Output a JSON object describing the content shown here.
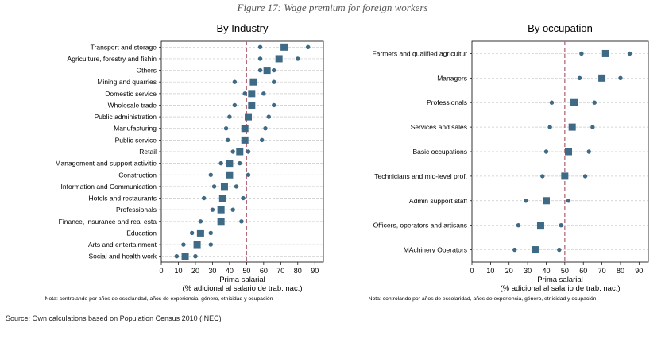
{
  "figure": {
    "caption": "Figure 17: Wage premium for foreign workers",
    "source": "Source: Own calculations based on Population Census 2010 (INEC)"
  },
  "colors": {
    "marker": "#3e6a85",
    "refline": "#b46a78",
    "grid": "#c8c8c8"
  },
  "chart_data": [
    {
      "type": "scatter",
      "title": "By Industry",
      "xlabel": "Prima salarial",
      "xlabel2": "(% adicional al salario de trab. nac.)",
      "note": "Nota: controlando por años de escolaridad, años de experiencia, género, etnicidad y ocupación",
      "xlim": [
        0,
        95
      ],
      "xticks": [
        0,
        10,
        20,
        30,
        40,
        50,
        60,
        70,
        80,
        90
      ],
      "refline": 50,
      "grid": true,
      "categories": [
        "Transport and storage",
        "Agriculture, forestry and fishin",
        "Others",
        "Mining and quarries",
        "Domestic service",
        "Wholesale trade",
        "Public administration",
        "Manufacturing",
        "Public service",
        "Retail",
        "Management and support activitie",
        "Construction",
        "Information and Communication",
        "Hotels and restaurants",
        "Professionals",
        "Finance, insurance and real esta",
        "Education",
        "Arts and entertainment",
        "Social and health work"
      ],
      "series": [
        {
          "marker": "square",
          "values": [
            72,
            69,
            62,
            54,
            53,
            53,
            51,
            49,
            49,
            46,
            40,
            40,
            37,
            36,
            35,
            35,
            23,
            21,
            14
          ]
        },
        {
          "marker": "circle",
          "values": [
            58,
            58,
            58,
            43,
            49,
            43,
            40,
            38,
            39,
            42,
            35,
            29,
            31,
            25,
            30,
            23,
            18,
            13,
            9
          ]
        },
        {
          "marker": "circle",
          "values": [
            86,
            80,
            66,
            66,
            60,
            66,
            63,
            61,
            59,
            51,
            46,
            51,
            44,
            48,
            42,
            47,
            29,
            29,
            20
          ]
        }
      ]
    },
    {
      "type": "scatter",
      "title": "By occupation",
      "xlabel": "Prima salarial",
      "xlabel2": "(% adicional al salario de trab. nac.)",
      "note": "Nota: controlando por años de escolaridad, años de experiencia, género, etnicidad y ocupación",
      "xlim": [
        0,
        95
      ],
      "xticks": [
        0,
        10,
        20,
        30,
        40,
        50,
        60,
        70,
        80,
        90
      ],
      "refline": 50,
      "grid": true,
      "categories": [
        "Farmers and qualified agricultur",
        "Managers",
        "Professionals",
        "Services and sales",
        "Basic occupations",
        "Technicians and mid-level prof.",
        "Admin support staff",
        "Officers, operators and artisans",
        "MAchinery Operators"
      ],
      "series": [
        {
          "marker": "square",
          "values": [
            72,
            70,
            55,
            54,
            52,
            50,
            40,
            37,
            34
          ]
        },
        {
          "marker": "circle",
          "values": [
            59,
            58,
            43,
            42,
            40,
            38,
            29,
            25,
            23
          ]
        },
        {
          "marker": "circle",
          "values": [
            85,
            80,
            66,
            65,
            63,
            61,
            52,
            48,
            47
          ]
        }
      ]
    }
  ]
}
